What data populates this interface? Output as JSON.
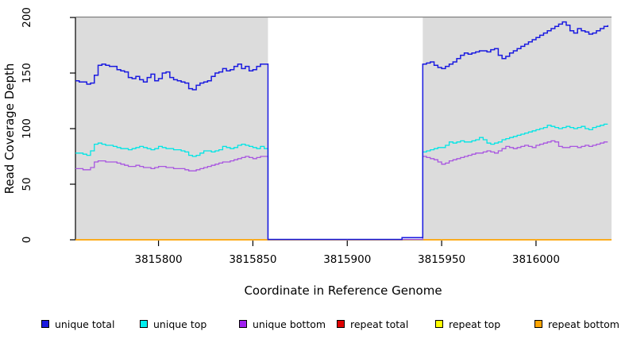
{
  "figure": {
    "xlabel": "Coordinate in Reference Genome",
    "ylabel": "Read Coverage Depth"
  },
  "legend": {
    "items": [
      {
        "label": "unique total",
        "color": "#1A1AE0"
      },
      {
        "label": "unique top",
        "color": "#00EEEE"
      },
      {
        "label": "unique bottom",
        "color": "#A020F0"
      },
      {
        "label": "repeat total",
        "color": "#E00000"
      },
      {
        "label": "repeat top",
        "color": "#FFFF00"
      },
      {
        "label": "repeat bottom",
        "color": "#FFA500"
      }
    ]
  },
  "chart_data": {
    "type": "line",
    "title": "",
    "xlabel": "Coordinate in Reference Genome",
    "ylabel": "Read Coverage Depth",
    "xlim": [
      3815756,
      3816040
    ],
    "ylim": [
      0,
      200
    ],
    "x_ticks": [
      3815800,
      3815850,
      3815900,
      3815950,
      3816000
    ],
    "y_ticks": [
      0,
      50,
      100,
      150,
      200
    ],
    "grid": false,
    "legend_position": "bottom",
    "plot_style": "step",
    "background_shading": {
      "color": "#DCDCDC",
      "top_border_color": "#7F7F7F",
      "regions": [
        [
          3815756,
          3815858
        ],
        [
          3815940,
          3816040
        ]
      ]
    },
    "masked_gap": [
      3815858,
      3815940
    ],
    "series": [
      {
        "name": "unique total",
        "color": "#1A1AE0",
        "width": 1.5,
        "segments": [
          {
            "x0": 3815756,
            "dx": 2,
            "values": [
              143,
              142,
              142,
              140,
              141,
              148,
              157,
              158,
              157,
              156,
              156,
              153,
              152,
              151,
              146,
              145,
              147,
              144,
              142,
              146,
              149,
              143,
              145,
              150,
              151,
              146,
              144,
              143,
              142,
              141,
              136,
              135,
              139,
              141,
              142,
              143,
              147,
              150,
              151,
              154,
              152,
              153,
              156,
              158,
              154,
              156,
              152,
              153,
              156,
              158,
              158
            ]
          },
          {
            "points": [
              [
                3815858,
                0.3
              ],
              [
                3815929,
                2
              ],
              [
                3815940,
                2
              ]
            ]
          },
          {
            "x0": 3815940,
            "dx": 2,
            "values": [
              158,
              159,
              160,
              157,
              155,
              154,
              156,
              158,
              160,
              163,
              166,
              168,
              167,
              168,
              169,
              170,
              170,
              169,
              171,
              172,
              166,
              163,
              165,
              168,
              170,
              172,
              174,
              176,
              178,
              180,
              182,
              184,
              186,
              188,
              190,
              192,
              194,
              196,
              193,
              188,
              186,
              190,
              188,
              187,
              185,
              186,
              188,
              190,
              192,
              193
            ]
          }
        ]
      },
      {
        "name": "unique top",
        "color": "#00E5E5",
        "width": 1.3,
        "segments": [
          {
            "x0": 3815756,
            "dx": 2,
            "values": [
              78,
              78,
              77,
              76,
              80,
              86,
              87,
              86,
              85,
              85,
              84,
              83,
              82,
              82,
              81,
              82,
              83,
              84,
              83,
              82,
              81,
              82,
              84,
              83,
              82,
              82,
              81,
              81,
              80,
              79,
              76,
              75,
              76,
              78,
              80,
              80,
              79,
              80,
              81,
              84,
              83,
              82,
              83,
              85,
              86,
              85,
              84,
              83,
              82,
              84,
              82
            ]
          },
          {
            "points": [
              [
                3815858,
                0.3
              ],
              [
                3815940,
                0.3
              ]
            ]
          },
          {
            "x0": 3815940,
            "dx": 2,
            "values": [
              79,
              80,
              81,
              82,
              83,
              83,
              85,
              88,
              87,
              88,
              89,
              88,
              88,
              89,
              90,
              92,
              90,
              87,
              86,
              87,
              88,
              90,
              91,
              92,
              93,
              94,
              95,
              96,
              97,
              98,
              99,
              100,
              101,
              103,
              102,
              101,
              100,
              101,
              102,
              101,
              100,
              101,
              102,
              100,
              99,
              101,
              102,
              103,
              104,
              104
            ]
          }
        ]
      },
      {
        "name": "unique bottom",
        "color": "#A855E0",
        "width": 1.3,
        "segments": [
          {
            "x0": 3815756,
            "dx": 2,
            "values": [
              64,
              64,
              63,
              63,
              65,
              70,
              71,
              71,
              70,
              70,
              70,
              69,
              68,
              67,
              66,
              66,
              67,
              66,
              65,
              65,
              64,
              65,
              66,
              66,
              65,
              65,
              64,
              64,
              64,
              63,
              62,
              62,
              63,
              64,
              65,
              66,
              67,
              68,
              69,
              70,
              70,
              71,
              72,
              73,
              74,
              75,
              74,
              73,
              74,
              75,
              75
            ]
          },
          {
            "points": [
              [
                3815858,
                0.3
              ],
              [
                3815940,
                0.3
              ]
            ]
          },
          {
            "x0": 3815940,
            "dx": 2,
            "values": [
              75,
              74,
              73,
              72,
              70,
              68,
              69,
              71,
              72,
              73,
              74,
              75,
              76,
              77,
              78,
              78,
              79,
              80,
              79,
              78,
              80,
              82,
              84,
              83,
              82,
              83,
              84,
              85,
              84,
              83,
              85,
              86,
              87,
              88,
              89,
              88,
              84,
              83,
              83,
              84,
              84,
              83,
              84,
              85,
              84,
              85,
              86,
              87,
              88,
              88
            ]
          }
        ]
      },
      {
        "name": "repeat total",
        "color": "#E00000",
        "width": 1.3,
        "segments": [
          {
            "points": [
              [
                3815756,
                0
              ],
              [
                3816040,
                0
              ]
            ]
          }
        ]
      },
      {
        "name": "repeat top",
        "color": "#FFFF00",
        "width": 1.3,
        "segments": [
          {
            "points": [
              [
                3815756,
                0
              ],
              [
                3816040,
                0
              ]
            ]
          }
        ]
      },
      {
        "name": "repeat bottom",
        "color": "#FFA500",
        "width": 1.6,
        "segments": [
          {
            "points": [
              [
                3815756,
                0
              ],
              [
                3816040,
                0
              ]
            ]
          }
        ]
      }
    ]
  }
}
